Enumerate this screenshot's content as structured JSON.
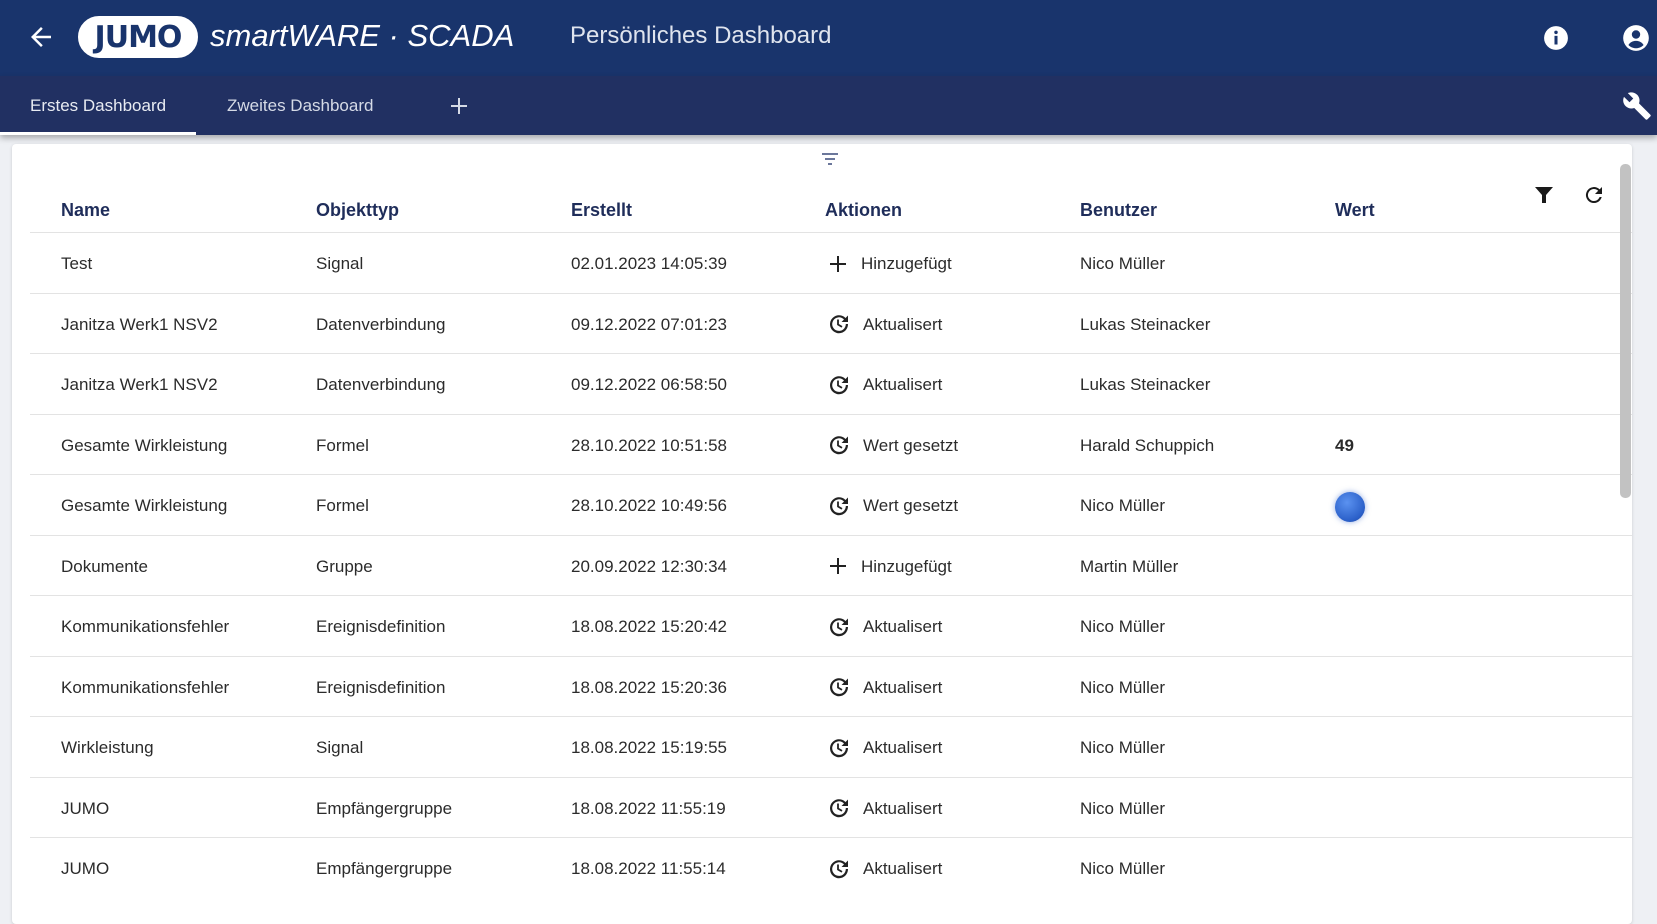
{
  "header": {
    "brand_logo": "JUMO",
    "brand_product": "smartWARE · SCADA",
    "title": "Persönliches Dashboard"
  },
  "tabs": [
    {
      "label": "Erstes Dashboard",
      "active": true
    },
    {
      "label": "Zweites Dashboard",
      "active": false
    }
  ],
  "table": {
    "columns": [
      "Name",
      "Objekttyp",
      "Erstellt",
      "Aktionen",
      "Benutzer",
      "Wert"
    ],
    "rows": [
      {
        "name": "Test",
        "type": "Signal",
        "created": "02.01.2023 14:05:39",
        "action_icon": "plus-icon",
        "action": "Hinzugefügt",
        "user": "Nico Müller",
        "value": ""
      },
      {
        "name": "Janitza Werk1 NSV2",
        "type": "Datenverbindung",
        "created": "09.12.2022 07:01:23",
        "action_icon": "history-icon",
        "action": "Aktualisert",
        "user": "Lukas Steinacker",
        "value": ""
      },
      {
        "name": "Janitza Werk1 NSV2",
        "type": "Datenverbindung",
        "created": "09.12.2022 06:58:50",
        "action_icon": "history-icon",
        "action": "Aktualisert",
        "user": "Lukas Steinacker",
        "value": ""
      },
      {
        "name": "Gesamte Wirkleistung",
        "type": "Formel",
        "created": "28.10.2022 10:51:58",
        "action_icon": "history-icon",
        "action": "Wert gesetzt",
        "user": "Harald Schuppich",
        "value": "49"
      },
      {
        "name": "Gesamte Wirkleistung",
        "type": "Formel",
        "created": "28.10.2022 10:49:56",
        "action_icon": "history-icon",
        "action": "Wert gesetzt",
        "user": "Nico Müller",
        "value": "",
        "value_indicator": "blue-dot"
      },
      {
        "name": "Dokumente",
        "type": "Gruppe",
        "created": "20.09.2022 12:30:34",
        "action_icon": "plus-icon",
        "action": "Hinzugefügt",
        "user": "Martin Müller",
        "value": ""
      },
      {
        "name": "Kommunikationsfehler",
        "type": "Ereignisdefinition",
        "created": "18.08.2022 15:20:42",
        "action_icon": "history-icon",
        "action": "Aktualisert",
        "user": "Nico Müller",
        "value": ""
      },
      {
        "name": "Kommunikationsfehler",
        "type": "Ereignisdefinition",
        "created": "18.08.2022 15:20:36",
        "action_icon": "history-icon",
        "action": "Aktualisert",
        "user": "Nico Müller",
        "value": ""
      },
      {
        "name": "Wirkleistung",
        "type": "Signal",
        "created": "18.08.2022 15:19:55",
        "action_icon": "history-icon",
        "action": "Aktualisert",
        "user": "Nico Müller",
        "value": ""
      },
      {
        "name": "JUMO",
        "type": "Empfängergruppe",
        "created": "18.08.2022 11:55:19",
        "action_icon": "history-icon",
        "action": "Aktualisert",
        "user": "Nico Müller",
        "value": ""
      },
      {
        "name": "JUMO",
        "type": "Empfängergruppe",
        "created": "18.08.2022 11:55:14",
        "action_icon": "history-icon",
        "action": "Aktualisert",
        "user": "Nico Müller",
        "value": ""
      }
    ]
  },
  "colors": {
    "header": "#19346c",
    "tabbar": "#213062",
    "column_header": "#1f2d5a",
    "indicator": "#3f78e0"
  }
}
